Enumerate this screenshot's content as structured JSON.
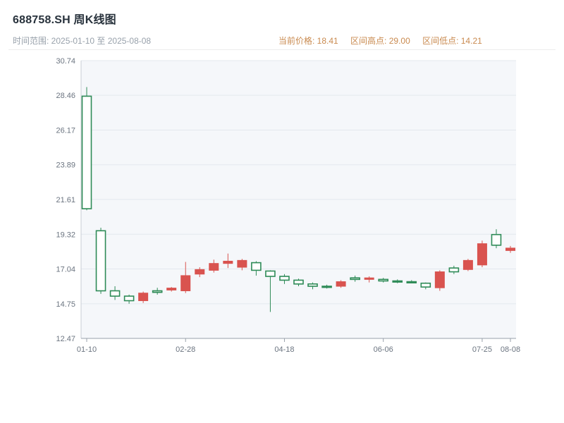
{
  "header": {
    "title": "688758.SH 周K线图",
    "time_range": "时间范围: 2025-01-10 至 2025-08-08",
    "stat_price": "当前价格: 18.41",
    "stat_high": "区间高点: 29.00",
    "stat_low": "区间低点: 14.21"
  },
  "colors": {
    "up": "#d9534f",
    "down": "#2e8b57",
    "plot_bg": "#f5f7fa",
    "grid": "#e3e8ee",
    "y_axis": "#c9ced6",
    "x_axis": "#99a1ab",
    "tick_text": "#6b7480",
    "title_text": "#28323c",
    "subtitle_left": "#98a1ab",
    "subtitle_right": "#c98a4f"
  },
  "chart_data": {
    "type": "candlestick",
    "title": "688758.SH 周K线图",
    "xlabel": "",
    "ylabel": "",
    "ylim": [
      12.47,
      30.74
    ],
    "y_ticks": [
      30.74,
      28.46,
      26.17,
      23.89,
      21.61,
      19.32,
      17.04,
      14.75,
      12.47
    ],
    "x_tick_labels": [
      {
        "label": "01-10",
        "index": 0
      },
      {
        "label": "02-28",
        "index": 7
      },
      {
        "label": "04-18",
        "index": 14
      },
      {
        "label": "06-06",
        "index": 21
      },
      {
        "label": "07-25",
        "index": 28
      },
      {
        "label": "08-08",
        "index": 30
      }
    ],
    "grid": "horizontal",
    "legend": "none",
    "current_price": 18.41,
    "range_high": 29.0,
    "range_low": 14.21,
    "candles": [
      {
        "date": "01-10",
        "open": 28.4,
        "high": 29.0,
        "low": 20.9,
        "close": 21.0
      },
      {
        "date": "01-17",
        "open": 19.55,
        "high": 19.75,
        "low": 15.4,
        "close": 15.6
      },
      {
        "date": "01-24",
        "open": 15.6,
        "high": 15.9,
        "low": 15.0,
        "close": 15.25
      },
      {
        "date": "01-31",
        "open": 15.25,
        "high": 15.35,
        "low": 14.75,
        "close": 14.95
      },
      {
        "date": "02-07",
        "open": 14.95,
        "high": 15.55,
        "low": 14.8,
        "close": 15.45
      },
      {
        "date": "02-14",
        "open": 15.6,
        "high": 15.8,
        "low": 15.35,
        "close": 15.5
      },
      {
        "date": "02-21",
        "open": 15.65,
        "high": 15.85,
        "low": 15.55,
        "close": 15.78
      },
      {
        "date": "02-28",
        "open": 15.6,
        "high": 17.5,
        "low": 15.45,
        "close": 16.6
      },
      {
        "date": "03-07",
        "open": 16.7,
        "high": 17.15,
        "low": 16.5,
        "close": 17.0
      },
      {
        "date": "03-14",
        "open": 16.95,
        "high": 17.65,
        "low": 16.8,
        "close": 17.4
      },
      {
        "date": "03-21",
        "open": 17.4,
        "high": 18.05,
        "low": 17.1,
        "close": 17.55
      },
      {
        "date": "03-28",
        "open": 17.15,
        "high": 17.7,
        "low": 16.95,
        "close": 17.6
      },
      {
        "date": "04-04",
        "open": 17.45,
        "high": 17.55,
        "low": 16.6,
        "close": 16.95
      },
      {
        "date": "04-11",
        "open": 16.9,
        "high": 16.95,
        "low": 14.21,
        "close": 16.55
      },
      {
        "date": "04-18",
        "open": 16.55,
        "high": 16.7,
        "low": 16.05,
        "close": 16.3
      },
      {
        "date": "04-25",
        "open": 16.3,
        "high": 16.4,
        "low": 15.9,
        "close": 16.05
      },
      {
        "date": "05-02",
        "open": 16.05,
        "high": 16.15,
        "low": 15.7,
        "close": 15.9
      },
      {
        "date": "05-09",
        "open": 15.9,
        "high": 16.0,
        "low": 15.75,
        "close": 15.85
      },
      {
        "date": "05-16",
        "open": 15.9,
        "high": 16.3,
        "low": 15.8,
        "close": 16.2
      },
      {
        "date": "05-23",
        "open": 16.45,
        "high": 16.6,
        "low": 16.2,
        "close": 16.35
      },
      {
        "date": "05-30",
        "open": 16.35,
        "high": 16.55,
        "low": 16.15,
        "close": 16.45
      },
      {
        "date": "06-06",
        "open": 16.35,
        "high": 16.45,
        "low": 16.15,
        "close": 16.25
      },
      {
        "date": "06-13",
        "open": 16.25,
        "high": 16.35,
        "low": 16.1,
        "close": 16.2
      },
      {
        "date": "06-20",
        "open": 16.2,
        "high": 16.3,
        "low": 16.1,
        "close": 16.15
      },
      {
        "date": "06-27",
        "open": 16.1,
        "high": 16.15,
        "low": 15.7,
        "close": 15.85
      },
      {
        "date": "07-04",
        "open": 15.8,
        "high": 16.95,
        "low": 15.6,
        "close": 16.85
      },
      {
        "date": "07-11",
        "open": 17.1,
        "high": 17.25,
        "low": 16.7,
        "close": 16.85
      },
      {
        "date": "07-18",
        "open": 17.0,
        "high": 17.7,
        "low": 16.9,
        "close": 17.6
      },
      {
        "date": "07-25",
        "open": 17.3,
        "high": 18.9,
        "low": 17.15,
        "close": 18.7
      },
      {
        "date": "08-01",
        "open": 19.3,
        "high": 19.65,
        "low": 18.4,
        "close": 18.6
      },
      {
        "date": "08-08",
        "open": 18.25,
        "high": 18.55,
        "low": 18.1,
        "close": 18.41
      }
    ]
  }
}
